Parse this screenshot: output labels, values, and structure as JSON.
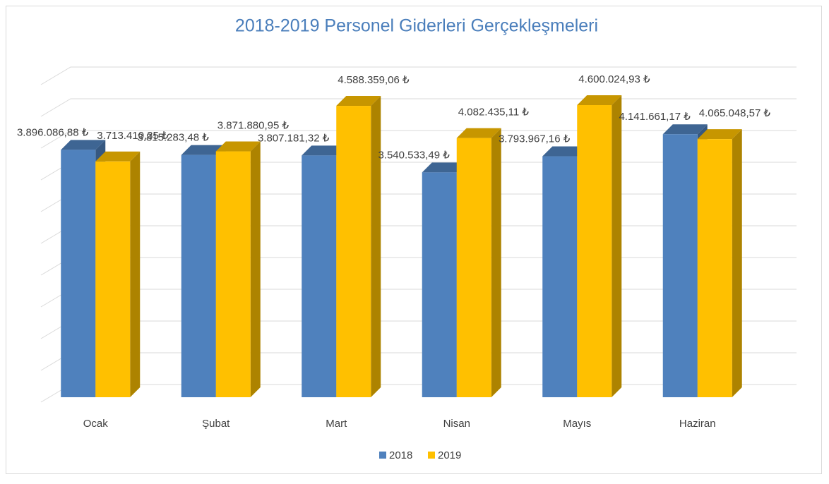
{
  "chart_data": {
    "type": "bar3d",
    "title": "2018-2019 Personel Giderleri Gerçekleşmeleri",
    "categories": [
      "Ocak",
      "Şubat",
      "Mart",
      "Nisan",
      "Mayıs",
      "Haziran"
    ],
    "series": [
      {
        "name": "2018",
        "color": "#4f81bd",
        "values": [
          3896086.88,
          3815283.48,
          3807181.32,
          3540533.49,
          3793967.16,
          4141661.17
        ],
        "value_labels": [
          "3.896.086,88 ₺",
          "3.815.283,48 ₺",
          "3.807.181,32 ₺",
          "3.540.533,49 ₺",
          "3.793.967,16 ₺",
          "4.141.661,17 ₺"
        ]
      },
      {
        "name": "2019",
        "color": "#ffc000",
        "values": [
          3713410.35,
          3871880.95,
          4588359.06,
          4082435.11,
          4600024.93,
          4065048.57
        ],
        "value_labels": [
          "3.713.410,35 ₺",
          "3.871.880,95 ₺",
          "4.588.359,06 ₺",
          "4.082.435,11 ₺",
          "4.600.024,93 ₺",
          "4.065.048,57 ₺"
        ]
      }
    ],
    "ylim": [
      0,
      5000000
    ],
    "yticks": [
      0,
      500000,
      1000000,
      1500000,
      2000000,
      2500000,
      3000000,
      3500000,
      4000000,
      4500000,
      5000000
    ],
    "grid": true,
    "legend": "bottom"
  }
}
